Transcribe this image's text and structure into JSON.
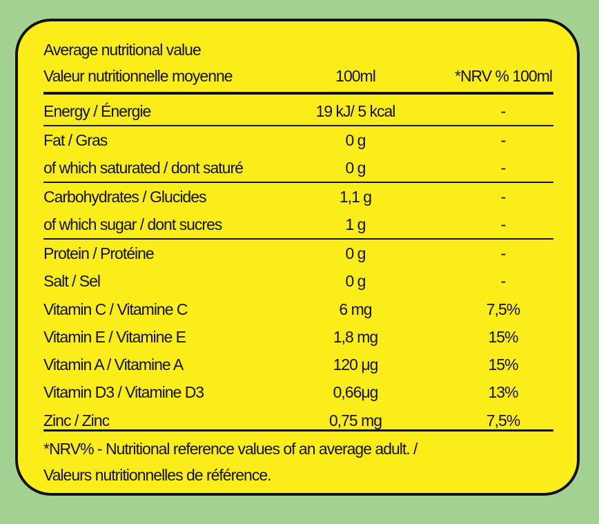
{
  "header": {
    "title_en": "Average nutritional value",
    "title_fr": "Valeur nutritionnelle moyenne",
    "col_per": "100ml",
    "col_nrv": "*NRV % 100ml"
  },
  "rows": [
    {
      "label": "Energy / Énergie",
      "value": "19 kJ/ 5 kcal",
      "nrv": "-"
    },
    {
      "label": "Fat / Gras",
      "value": "0 g",
      "nrv": "-"
    },
    {
      "label": "of which saturated / dont saturé",
      "value": "0 g",
      "nrv": "-"
    },
    {
      "label": "Carbohydrates / Glucides",
      "value": "1,1 g",
      "nrv": "-"
    },
    {
      "label": "of which sugar / dont sucres",
      "value": "1 g",
      "nrv": "-"
    },
    {
      "label": "Protein / Protéine",
      "value": "0 g",
      "nrv": "-"
    },
    {
      "label": "Salt / Sel",
      "value": "0 g",
      "nrv": "-"
    },
    {
      "label": "Vitamin C / Vitamine C",
      "value": "6 mg",
      "nrv": "7,5%"
    },
    {
      "label": "Vitamin E / Vitamine E",
      "value": "1,8 mg",
      "nrv": "15%"
    },
    {
      "label": "Vitamin A / Vitamine A",
      "value": "120 μg",
      "nrv": "15%"
    },
    {
      "label": "Vitamin D3 / Vitamine D3",
      "value": "0,66μg",
      "nrv": "13%"
    },
    {
      "label": "Zinc / Zinc",
      "value": "0,75 mg",
      "nrv": "7,5%"
    }
  ],
  "footnote": {
    "line1": "*NRV% - Nutritional reference values of an average adult. /",
    "line2": "Valeurs nutritionnelles de référence."
  },
  "colors": {
    "background": "#a3d191",
    "panel": "#fbed1a",
    "ink": "#111111"
  }
}
